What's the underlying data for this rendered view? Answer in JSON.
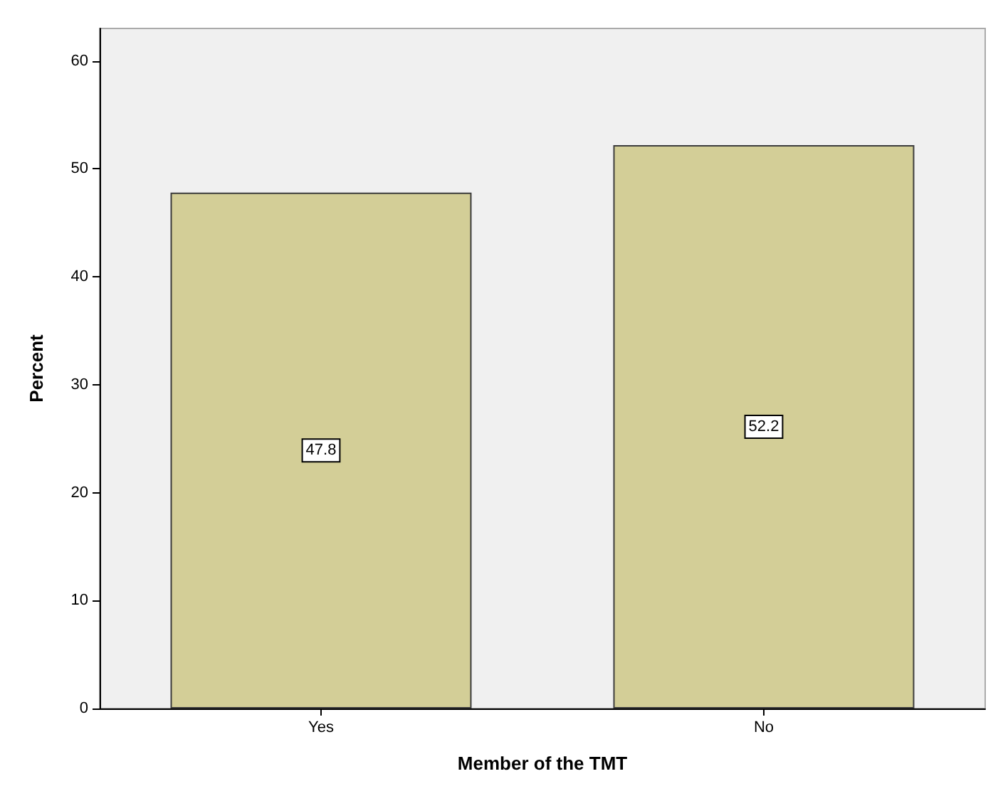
{
  "chart_data": {
    "type": "bar",
    "xlabel": "Member of the TMT",
    "ylabel": "Percent",
    "categories": [
      "Yes",
      "No"
    ],
    "values": [
      47.8,
      52.2
    ],
    "color": "#d3ce97",
    "ylim": [
      0,
      63
    ],
    "yticks": [
      0,
      10,
      20,
      30,
      40,
      50,
      60
    ],
    "grid": false,
    "data_labels": true
  }
}
